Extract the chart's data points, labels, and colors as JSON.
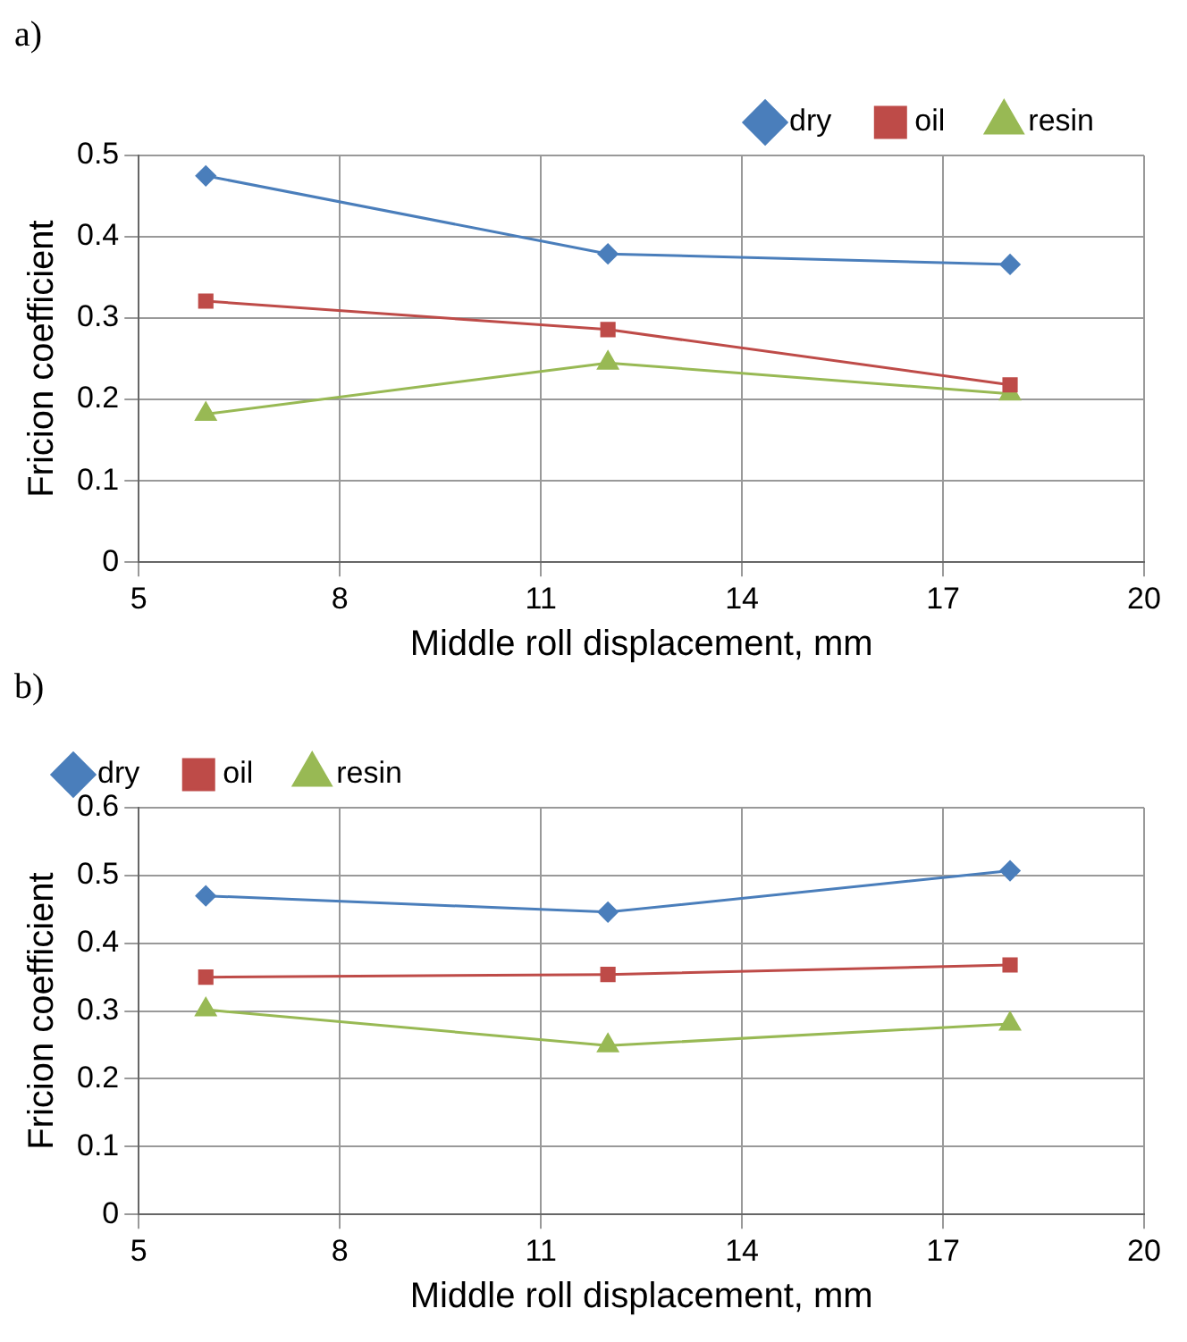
{
  "chart_data": [
    {
      "type": "line",
      "title": "a)",
      "xlabel": "Middle roll displacement, mm",
      "ylabel": "Fricion coefficient",
      "x": [
        6,
        12,
        18
      ],
      "xlim": [
        5,
        20
      ],
      "xticks": [
        5,
        8,
        11,
        14,
        17,
        20
      ],
      "ylim": [
        0,
        0.5
      ],
      "yticks": [
        0,
        0.1,
        0.2,
        0.3,
        0.4,
        0.5
      ],
      "grid": true,
      "legend": "top right",
      "series": [
        {
          "name": "dry",
          "color": "#4a7ebb",
          "marker": "diamond",
          "values": [
            0.475,
            0.379,
            0.366
          ]
        },
        {
          "name": "oil",
          "color": "#be4b48",
          "marker": "square",
          "values": [
            0.321,
            0.286,
            0.218
          ]
        },
        {
          "name": "resin",
          "color": "#98b954",
          "marker": "triangle",
          "values": [
            0.182,
            0.245,
            0.207
          ]
        }
      ]
    },
    {
      "type": "line",
      "title": "b)",
      "xlabel": "Middle roll displacement, mm",
      "ylabel": "Fricion coefficient",
      "x": [
        6,
        12,
        18
      ],
      "xlim": [
        5,
        20
      ],
      "xticks": [
        5,
        8,
        11,
        14,
        17,
        20
      ],
      "ylim": [
        0,
        0.6
      ],
      "yticks": [
        0,
        0.1,
        0.2,
        0.3,
        0.4,
        0.5,
        0.6
      ],
      "grid": true,
      "legend": "top left",
      "series": [
        {
          "name": "dry",
          "color": "#4a7ebb",
          "marker": "diamond",
          "values": [
            0.47,
            0.446,
            0.507
          ]
        },
        {
          "name": "oil",
          "color": "#be4b48",
          "marker": "square",
          "values": [
            0.35,
            0.354,
            0.368
          ]
        },
        {
          "name": "resin",
          "color": "#98b954",
          "marker": "triangle",
          "values": [
            0.302,
            0.249,
            0.281
          ]
        }
      ]
    }
  ]
}
